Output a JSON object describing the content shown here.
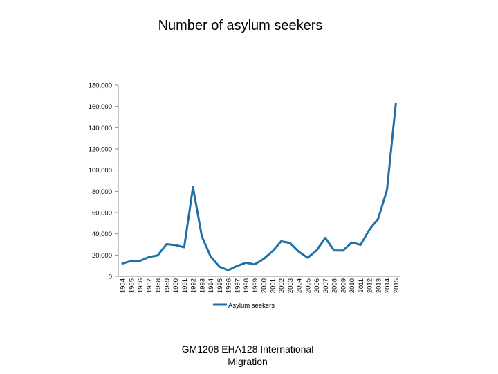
{
  "slide": {
    "title": "Number of asylum seekers",
    "footer_line1": "GM1208 EHA128   International",
    "footer_line2": "Migration"
  },
  "chart_data": {
    "type": "line",
    "title": "Number of asylum seekers",
    "xlabel": "",
    "ylabel": "",
    "ylim": [
      0,
      180000
    ],
    "yticks": [
      0,
      20000,
      40000,
      60000,
      80000,
      100000,
      120000,
      140000,
      160000,
      180000
    ],
    "ytick_labels": [
      "0",
      "20,000",
      "40,000",
      "60,000",
      "80,000",
      "100,000",
      "120,000",
      "140,000",
      "160,000",
      "180,000"
    ],
    "legend_position": "bottom",
    "grid": false,
    "line_color": "#1f6fa8",
    "categories": [
      "1984",
      "1985",
      "1986",
      "1987",
      "1988",
      "1989",
      "1990",
      "1991",
      "1992",
      "1993",
      "1994",
      "1995",
      "1996",
      "1997",
      "1998",
      "1999",
      "2000",
      "2001",
      "2002",
      "2003",
      "2004",
      "2005",
      "2006",
      "2007",
      "2008",
      "2009",
      "2010",
      "2011",
      "2012",
      "2013",
      "2014",
      "2015"
    ],
    "series": [
      {
        "name": "Asylum seekers",
        "values": [
          12000,
          14500,
          14600,
          18100,
          19600,
          30300,
          29400,
          27400,
          84000,
          37600,
          18600,
          9000,
          5800,
          9700,
          12800,
          11200,
          16300,
          23500,
          33000,
          31400,
          23200,
          17500,
          24300,
          36200,
          24400,
          24200,
          31800,
          29700,
          43900,
          54300,
          81300,
          162900
        ]
      }
    ]
  }
}
